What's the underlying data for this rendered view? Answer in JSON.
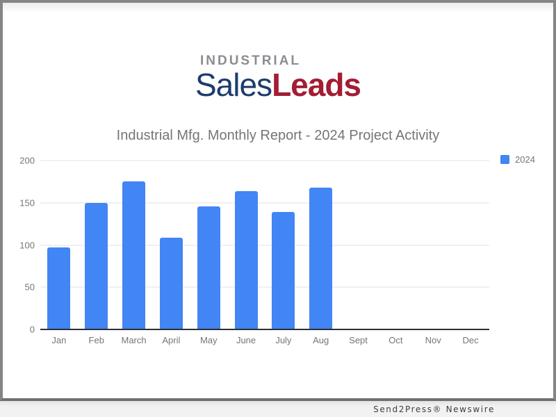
{
  "logo": {
    "industrial": "INDUSTRIAL",
    "sales": "Sales",
    "leads": "Leads",
    "colors": {
      "industrial": "#8a8d91",
      "sales": "#1d3c6d",
      "leads": "#a31d33"
    }
  },
  "chart_data": {
    "type": "bar",
    "title": "Industrial Mfg. Monthly Report - 2024 Project Activity",
    "categories": [
      "Jan",
      "Feb",
      "March",
      "April",
      "May",
      "June",
      "July",
      "Aug",
      "Sept",
      "Oct",
      "Nov",
      "Dec"
    ],
    "series": [
      {
        "name": "2024",
        "values": [
          97,
          150,
          175,
          109,
          146,
          164,
          139,
          168,
          0,
          0,
          0,
          0
        ]
      }
    ],
    "xlabel": "",
    "ylabel": "",
    "ylim": [
      0,
      200
    ],
    "yticks": [
      0,
      50,
      100,
      150,
      200
    ],
    "grid": true,
    "legend_position": "top-right",
    "bar_color": "#4285f4",
    "axis_text_color": "#757575"
  },
  "footer": {
    "watermark": "Send2Press® Newswire"
  }
}
